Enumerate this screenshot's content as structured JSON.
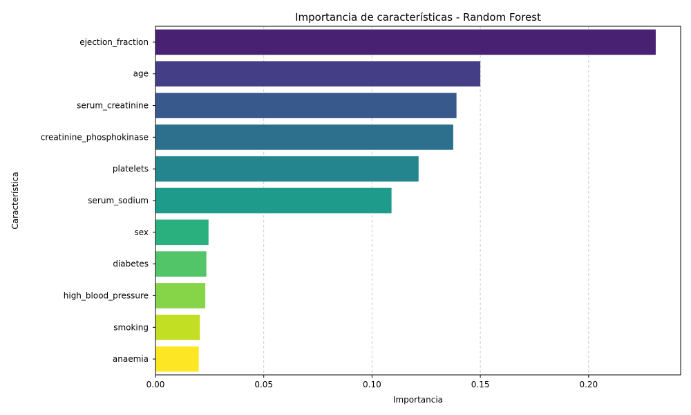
{
  "chart_data": {
    "type": "bar",
    "orientation": "horizontal",
    "title": "Importancia de características - Random Forest",
    "xlabel": "Importancia",
    "ylabel": "Característica",
    "xlim": [
      0,
      0.2425
    ],
    "xticks": [
      0.0,
      0.05,
      0.1,
      0.15,
      0.2
    ],
    "xtick_labels": [
      "0.00",
      "0.05",
      "0.10",
      "0.15",
      "0.20"
    ],
    "grid": "x-dashed",
    "categories": [
      "ejection_fraction",
      "age",
      "serum_creatinine",
      "creatinine_phosphokinase",
      "platelets",
      "serum_sodium",
      "sex",
      "diabetes",
      "high_blood_pressure",
      "smoking",
      "anaemia"
    ],
    "values": [
      0.231,
      0.15,
      0.139,
      0.1375,
      0.1215,
      0.109,
      0.0245,
      0.0235,
      0.023,
      0.0205,
      0.02
    ],
    "colors": [
      "#482173",
      "#433e85",
      "#38598c",
      "#2d708e",
      "#25858e",
      "#1e9b8a",
      "#2ab07f",
      "#52c569",
      "#86d549",
      "#c2df23",
      "#fde725"
    ],
    "palette": "viridis"
  }
}
